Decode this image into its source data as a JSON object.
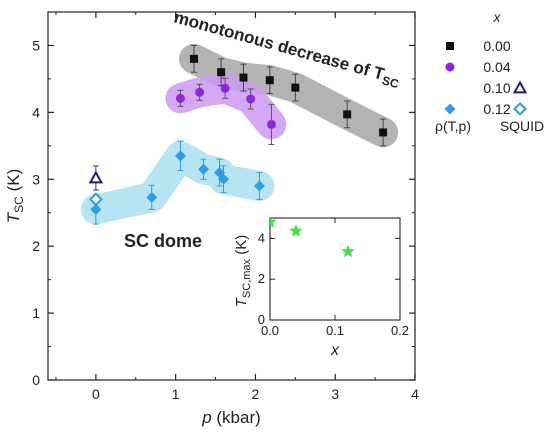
{
  "chart_data": {
    "type": "scatter",
    "xlabel": {
      "main": "p",
      "unit": " (kbar)"
    },
    "ylabel": {
      "main": "T",
      "sub": "SC",
      "unit": " (K)"
    },
    "xlim": [
      -0.6,
      4.0
    ],
    "ylim": [
      0,
      5.5
    ],
    "xticks": [
      0,
      1,
      2,
      3,
      4
    ],
    "yticks": [
      0,
      1,
      2,
      3,
      4,
      5
    ],
    "legend": {
      "header": "x",
      "placement": "top-right, outside",
      "entries": [
        {
          "label": "0.00"
        },
        {
          "label": "0.04"
        },
        {
          "label": "0.10"
        },
        {
          "label": "0.12"
        }
      ],
      "method_labels": {
        "rho": "ρ(T,p)",
        "squid": "SQUID"
      }
    },
    "series": [
      {
        "name": "0.00",
        "marker": "square",
        "color": "#111111",
        "method": "ρ(T,p)",
        "band_color": "#a6a6a6",
        "points": [
          {
            "x": 1.23,
            "y": 4.8,
            "err": 0.2
          },
          {
            "x": 1.57,
            "y": 4.6,
            "err": 0.2
          },
          {
            "x": 1.85,
            "y": 4.52,
            "err": 0.2
          },
          {
            "x": 2.18,
            "y": 4.48,
            "err": 0.2
          },
          {
            "x": 2.5,
            "y": 4.37,
            "err": 0.2
          },
          {
            "x": 3.15,
            "y": 3.97,
            "err": 0.2
          },
          {
            "x": 3.6,
            "y": 3.7,
            "err": 0.2
          }
        ]
      },
      {
        "name": "0.04",
        "marker": "circle",
        "color": "#8c28d9",
        "method": "ρ(T,p)",
        "band_color": "#cc99f2",
        "points": [
          {
            "x": 1.06,
            "y": 4.21,
            "err": 0.12
          },
          {
            "x": 1.3,
            "y": 4.3,
            "err": 0.12
          },
          {
            "x": 1.62,
            "y": 4.36,
            "err": 0.15
          },
          {
            "x": 1.94,
            "y": 4.2,
            "err": 0.15
          },
          {
            "x": 2.2,
            "y": 3.82,
            "err": 0.3
          }
        ]
      },
      {
        "name": "0.10",
        "marker": "triangle-open",
        "color": "#1a1a7a",
        "method": "SQUID",
        "points": [
          {
            "x": 0.0,
            "y": 3.02,
            "err": 0.18
          }
        ]
      },
      {
        "name": "0.12",
        "marker": "diamond",
        "color": "#2d9ee6",
        "method": "ρ(T,p)",
        "band_color": "#a9dff0",
        "points": [
          {
            "x": 0.0,
            "y": 2.55,
            "err": 0.22
          },
          {
            "x": 0.7,
            "y": 2.73,
            "err": 0.18
          },
          {
            "x": 1.06,
            "y": 3.35,
            "err": 0.22
          },
          {
            "x": 1.35,
            "y": 3.15,
            "err": 0.15
          },
          {
            "x": 1.55,
            "y": 3.1,
            "err": 0.2
          },
          {
            "x": 1.6,
            "y": 3.0,
            "err": 0.2
          },
          {
            "x": 2.05,
            "y": 2.9,
            "err": 0.2
          }
        ]
      },
      {
        "name": "0.12",
        "marker": "diamond-open",
        "color": "#2d9ee6",
        "method": "SQUID",
        "points": [
          {
            "x": 0.0,
            "y": 2.7
          }
        ]
      }
    ],
    "annotations": {
      "monotonous": {
        "main": "monotonous decrease of T",
        "sub": "SC"
      },
      "dome": "SC dome"
    },
    "inset": {
      "type": "scatter",
      "xlabel": "x",
      "ylabel": {
        "main": "T",
        "sub": "SC,max",
        "unit": " (K)"
      },
      "xlim": [
        0,
        0.2
      ],
      "ylim": [
        0,
        5
      ],
      "xticks": [
        "0.0",
        "0.1",
        "0.2"
      ],
      "yticks": [
        "0",
        "2",
        "4"
      ],
      "marker": "star",
      "color": "#45e045",
      "points": [
        {
          "x": 0.0,
          "y": 4.8
        },
        {
          "x": 0.04,
          "y": 4.36
        },
        {
          "x": 0.12,
          "y": 3.35
        }
      ]
    }
  }
}
